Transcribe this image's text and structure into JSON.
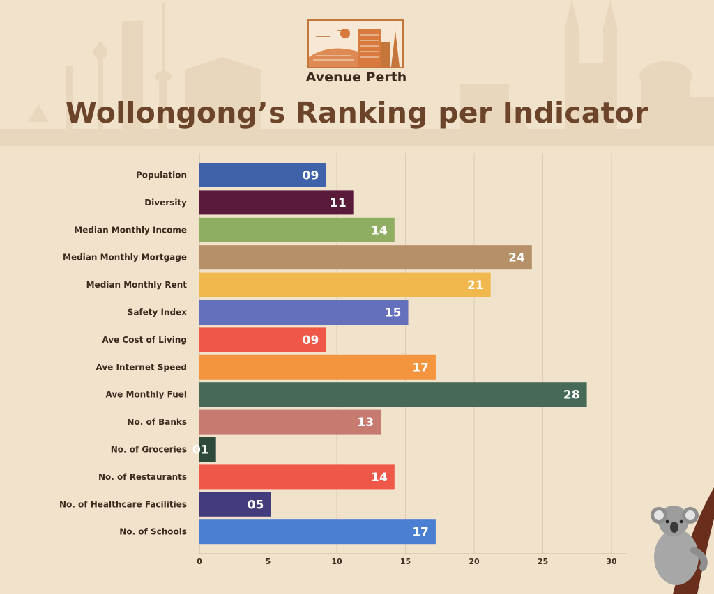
{
  "brand": {
    "name": "Avenue Perth"
  },
  "chart_data": {
    "type": "bar",
    "orientation": "horizontal",
    "title": "Wollongong’s Ranking per Indicator",
    "categories": [
      "Population",
      "Diversity",
      "Median Monthly Income",
      "Median Monthly Mortgage",
      "Median Monthly Rent",
      "Safety Index",
      "Ave Cost of Living",
      "Ave Internet Speed",
      "Ave Monthly Fuel",
      "No. of Banks",
      "No. of Groceries",
      "No. of Restaurants",
      "No. of Healthcare Facilities",
      "No. of Schools"
    ],
    "values": [
      9,
      11,
      14,
      24,
      21,
      15,
      9,
      17,
      28,
      13,
      1,
      14,
      5,
      17
    ],
    "data_labels": [
      "09",
      "11",
      "14",
      "24",
      "21",
      "15",
      "09",
      "17",
      "28",
      "13",
      "01",
      "14",
      "05",
      "17"
    ],
    "colors": [
      "#3f62a8",
      "#5a1a3a",
      "#8fae62",
      "#b59068",
      "#f1b84e",
      "#6470bb",
      "#ef5849",
      "#f2953e",
      "#476a58",
      "#c77a70",
      "#2e4a3a",
      "#ef5849",
      "#433c7c",
      "#4a7fd1"
    ],
    "xlim": [
      0,
      30
    ],
    "xticks": [
      0,
      5,
      10,
      15,
      20,
      25,
      30
    ],
    "grid": "vertical",
    "xlabel": "",
    "ylabel": ""
  },
  "colors": {
    "background": "#f1e2cc",
    "title": "#6b4429",
    "label": "#3b2a1e",
    "grid": "#dccbb4",
    "logo_accent": "#c4763b"
  },
  "icons": [
    "skyline-backdrop",
    "logo-buildings-icon",
    "koala-illustration"
  ]
}
